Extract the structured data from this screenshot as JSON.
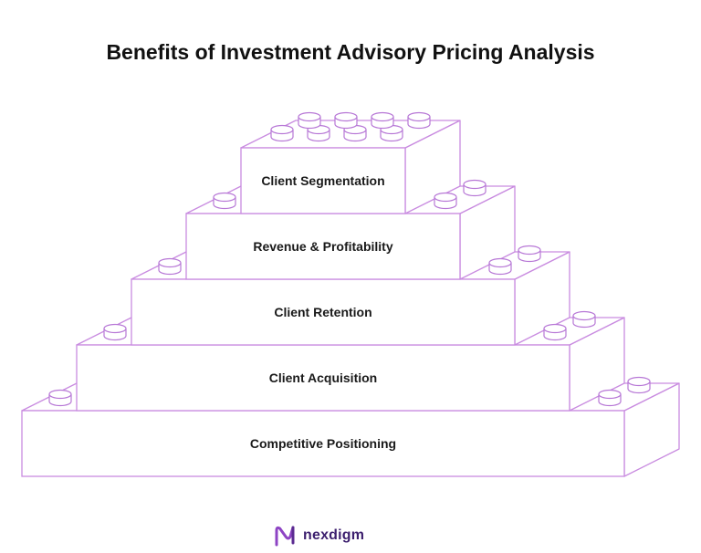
{
  "title": "Benefits of Investment Advisory Pricing Analysis",
  "levels": [
    {
      "label": "Client Segmentation"
    },
    {
      "label": "Revenue & Profitability"
    },
    {
      "label": "Client Retention"
    },
    {
      "label": "Client Acquisition"
    },
    {
      "label": "Competitive Positioning"
    }
  ],
  "brand": {
    "name": "nexdigm",
    "logo_icon": "nexdigm-logo-icon"
  },
  "colors": {
    "stroke": "#c98ce0",
    "stud_stroke": "#b777d6",
    "brand": "#3c1f6e",
    "logo": "#8e44c4"
  }
}
